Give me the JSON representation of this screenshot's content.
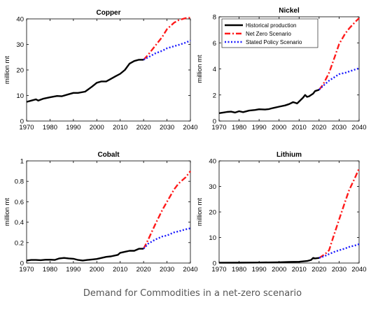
{
  "caption": "Demand for Commodities in a net-zero scenario",
  "legend": {
    "entries": [
      {
        "name": "Historical production",
        "color": "#000000",
        "style": "solid"
      },
      {
        "name": "Net Zero Scenario",
        "color": "#ff1a1a",
        "style": "dashdot"
      },
      {
        "name": "Stated Policy Scenario",
        "color": "#1a1aff",
        "style": "dotted"
      }
    ]
  },
  "chart_data": [
    {
      "type": "line",
      "title": "Copper",
      "ylabel": "million mt",
      "xlim": [
        1970,
        2040
      ],
      "ylim": [
        0,
        40
      ],
      "xticks": [
        1970,
        1980,
        1990,
        2000,
        2010,
        2020,
        2030,
        2040
      ],
      "yticks": [
        0,
        10,
        20,
        30,
        40
      ],
      "grid": false,
      "series": [
        {
          "name": "Historical production",
          "x": [
            1970,
            1972,
            1974,
            1975,
            1977,
            1980,
            1983,
            1985,
            1988,
            1990,
            1992,
            1995,
            1998,
            2000,
            2002,
            2004,
            2006,
            2008,
            2010,
            2012,
            2014,
            2016,
            2018,
            2020
          ],
          "y": [
            7.5,
            8,
            8.5,
            8,
            8.7,
            9.3,
            9.8,
            9.7,
            10.5,
            11,
            11,
            11.5,
            13.5,
            15,
            15.5,
            15.5,
            16.5,
            17.5,
            18.5,
            20,
            22.5,
            23.5,
            24,
            24
          ]
        },
        {
          "name": "Net Zero Scenario",
          "x": [
            2020,
            2022,
            2025,
            2028,
            2030,
            2033,
            2035,
            2038,
            2040
          ],
          "y": [
            24,
            26,
            29.5,
            33,
            36,
            38.5,
            39.5,
            40.3,
            40.5
          ]
        },
        {
          "name": "Stated Policy Scenario",
          "x": [
            2020,
            2022,
            2025,
            2028,
            2030,
            2033,
            2035,
            2038,
            2040
          ],
          "y": [
            24,
            25,
            26.5,
            27.5,
            28.5,
            29.3,
            29.8,
            30.7,
            31.5
          ]
        }
      ]
    },
    {
      "type": "line",
      "title": "Nickel",
      "ylabel": "million mt",
      "xlim": [
        1970,
        2040
      ],
      "ylim": [
        0,
        8
      ],
      "xticks": [
        1970,
        1980,
        1990,
        2000,
        2010,
        2020,
        2030,
        2040
      ],
      "yticks": [
        0,
        2,
        4,
        6,
        8
      ],
      "grid": false,
      "legend_position": "top-right",
      "series": [
        {
          "name": "Historical production",
          "x": [
            1970,
            1972,
            1974,
            1976,
            1978,
            1980,
            1982,
            1985,
            1988,
            1990,
            1993,
            1995,
            1997,
            2000,
            2003,
            2005,
            2007,
            2008,
            2009,
            2010,
            2012,
            2013,
            2014,
            2015,
            2016,
            2017,
            2018,
            2020
          ],
          "y": [
            0.6,
            0.65,
            0.7,
            0.72,
            0.65,
            0.75,
            0.68,
            0.8,
            0.85,
            0.9,
            0.88,
            0.92,
            1.0,
            1.1,
            1.2,
            1.3,
            1.45,
            1.4,
            1.35,
            1.5,
            1.8,
            2.0,
            1.85,
            1.9,
            2.0,
            2.1,
            2.3,
            2.4
          ]
        },
        {
          "name": "Net Zero Scenario",
          "x": [
            2020,
            2022,
            2025,
            2028,
            2030,
            2033,
            2035,
            2038,
            2040
          ],
          "y": [
            2.4,
            2.8,
            3.7,
            5.0,
            5.9,
            6.7,
            7.1,
            7.6,
            7.9
          ]
        },
        {
          "name": "Stated Policy Scenario",
          "x": [
            2020,
            2022,
            2025,
            2028,
            2030,
            2033,
            2035,
            2038,
            2040
          ],
          "y": [
            2.4,
            2.7,
            3.1,
            3.4,
            3.6,
            3.7,
            3.8,
            3.95,
            4.05
          ]
        }
      ]
    },
    {
      "type": "line",
      "title": "Cobalt",
      "ylabel": "million mt",
      "xlim": [
        1970,
        2040
      ],
      "ylim": [
        0,
        1
      ],
      "xticks": [
        1970,
        1980,
        1990,
        2000,
        2010,
        2020,
        2030,
        2040
      ],
      "yticks": [
        0,
        0.2,
        0.4,
        0.6,
        0.8,
        1
      ],
      "grid": false,
      "series": [
        {
          "name": "Historical production",
          "x": [
            1970,
            1972,
            1974,
            1976,
            1978,
            1980,
            1982,
            1984,
            1986,
            1988,
            1990,
            1992,
            1994,
            1996,
            1998,
            2000,
            2002,
            2004,
            2006,
            2008,
            2009,
            2010,
            2012,
            2014,
            2016,
            2018,
            2020
          ],
          "y": [
            0.025,
            0.03,
            0.03,
            0.028,
            0.032,
            0.033,
            0.03,
            0.045,
            0.05,
            0.045,
            0.042,
            0.03,
            0.025,
            0.03,
            0.035,
            0.04,
            0.05,
            0.06,
            0.065,
            0.075,
            0.08,
            0.1,
            0.11,
            0.12,
            0.12,
            0.14,
            0.14
          ]
        },
        {
          "name": "Net Zero Scenario",
          "x": [
            2020,
            2022,
            2025,
            2028,
            2030,
            2033,
            2035,
            2038,
            2040
          ],
          "y": [
            0.14,
            0.23,
            0.38,
            0.52,
            0.6,
            0.72,
            0.78,
            0.84,
            0.9
          ]
        },
        {
          "name": "Stated Policy Scenario",
          "x": [
            2020,
            2022,
            2025,
            2028,
            2030,
            2033,
            2035,
            2038,
            2040
          ],
          "y": [
            0.14,
            0.19,
            0.23,
            0.26,
            0.27,
            0.3,
            0.31,
            0.33,
            0.34
          ]
        }
      ]
    },
    {
      "type": "line",
      "title": "Lithium",
      "ylabel": "million mt",
      "xlim": [
        1970,
        2040
      ],
      "ylim": [
        0,
        40
      ],
      "xticks": [
        1970,
        1980,
        1990,
        2000,
        2010,
        2020,
        2030,
        2040
      ],
      "yticks": [
        0,
        10,
        20,
        30,
        40
      ],
      "grid": false,
      "series": [
        {
          "name": "Historical production",
          "x": [
            1970,
            1980,
            1990,
            2000,
            2005,
            2010,
            2014,
            2016,
            2017,
            2018,
            2020
          ],
          "y": [
            0.1,
            0.15,
            0.2,
            0.3,
            0.4,
            0.5,
            0.8,
            1.2,
            2.0,
            1.8,
            2.0
          ]
        },
        {
          "name": "Net Zero Scenario",
          "x": [
            2020,
            2023,
            2025,
            2027,
            2030,
            2033,
            2035,
            2038,
            2040
          ],
          "y": [
            2.0,
            3.5,
            5.0,
            10.0,
            17.0,
            24.0,
            28.5,
            33.5,
            37.0
          ]
        },
        {
          "name": "Stated Policy Scenario",
          "x": [
            2020,
            2023,
            2025,
            2028,
            2030,
            2033,
            2035,
            2038,
            2040
          ],
          "y": [
            2.0,
            2.8,
            3.5,
            4.5,
            5.0,
            5.7,
            6.3,
            6.9,
            7.4
          ]
        }
      ]
    }
  ]
}
